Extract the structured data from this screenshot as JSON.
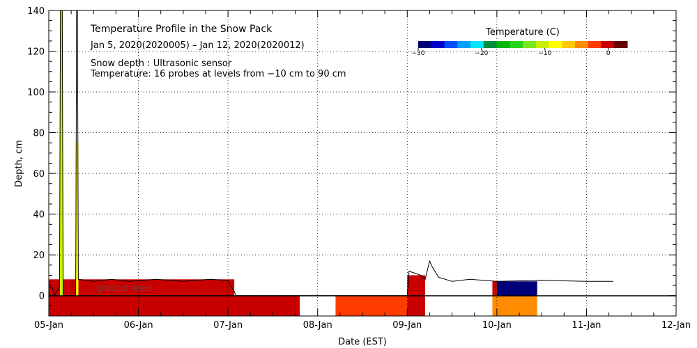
{
  "chart_data": {
    "type": "heatmap",
    "title": "Temperature Profile in the Snow Pack",
    "date_range": "Jan  5, 2020(2020005) – Jan 12, 2020(2020012)",
    "note1": "Snow depth : Ultrasonic sensor",
    "note2": "Temperature: 16 probes at levels from −10 cm to 90 cm",
    "xlabel": "Date (EST)",
    "ylabel": "Depth, cm",
    "ground_label": "ground level",
    "x_ticks": [
      "05-Jan",
      "06-Jan",
      "07-Jan",
      "08-Jan",
      "09-Jan",
      "10-Jan",
      "11-Jan",
      "12-Jan"
    ],
    "xlim_days": [
      0,
      7
    ],
    "ylim": [
      -10,
      140
    ],
    "y_ticks": [
      0,
      20,
      40,
      60,
      80,
      100,
      120,
      140
    ],
    "grid": true,
    "legend": {
      "title": "Temperature (C)",
      "range": [
        -30,
        3
      ],
      "ticks": [
        -30,
        -20,
        -10,
        0
      ],
      "colors": [
        "#00007a",
        "#0000c8",
        "#0050ff",
        "#00a0ff",
        "#00e6ff",
        "#008c3c",
        "#00b400",
        "#2ad21e",
        "#7ae61e",
        "#c8f000",
        "#ffff00",
        "#ffc800",
        "#ff8c00",
        "#ff3c00",
        "#c80000",
        "#640000"
      ]
    },
    "snow_depth_series": {
      "name": "Snow depth",
      "points": [
        [
          0.0,
          4
        ],
        [
          0.04,
          4
        ],
        [
          0.06,
          0
        ],
        [
          0.12,
          4
        ],
        [
          0.13,
          140
        ],
        [
          0.15,
          140
        ],
        [
          0.16,
          0
        ],
        [
          0.3,
          0
        ],
        [
          0.31,
          140
        ],
        [
          0.32,
          140
        ],
        [
          0.33,
          8
        ],
        [
          0.5,
          7
        ],
        [
          0.7,
          8
        ],
        [
          0.9,
          7
        ],
        [
          1.2,
          8
        ],
        [
          1.5,
          7
        ],
        [
          1.8,
          8
        ],
        [
          2.0,
          7.5
        ],
        [
          2.07,
          2
        ],
        [
          2.09,
          0
        ],
        [
          4.0,
          0
        ],
        [
          4.02,
          12
        ],
        [
          4.15,
          10
        ],
        [
          4.2,
          8
        ],
        [
          4.25,
          17
        ],
        [
          4.28,
          14
        ],
        [
          4.35,
          9
        ],
        [
          4.5,
          7
        ],
        [
          4.7,
          8
        ],
        [
          5.0,
          7
        ],
        [
          5.5,
          7.5
        ],
        [
          6.0,
          7
        ],
        [
          6.3,
          7
        ]
      ]
    },
    "temperature_blocks": [
      {
        "day_start": 0.0,
        "day_end": 2.07,
        "depth_from": 0,
        "depth_to": 8,
        "temp_c": 0
      },
      {
        "day_start": 0.0,
        "day_end": 2.8,
        "depth_from": -10,
        "depth_to": 0,
        "temp_c": -1
      },
      {
        "day_start": 3.2,
        "day_end": 4.0,
        "depth_from": -10,
        "depth_to": 0,
        "temp_c": -3
      },
      {
        "day_start": 4.0,
        "day_end": 4.2,
        "depth_from": 0,
        "depth_to": 10,
        "temp_c": 0
      },
      {
        "day_start": 4.0,
        "day_end": 4.2,
        "depth_from": -10,
        "depth_to": 0,
        "temp_c": -1
      },
      {
        "day_start": 4.95,
        "day_end": 5.0,
        "depth_from": 0,
        "depth_to": 7,
        "temp_c": 0
      },
      {
        "day_start": 5.0,
        "day_end": 5.45,
        "depth_from": 0,
        "depth_to": 7,
        "temp_c": -30
      },
      {
        "day_start": 4.95,
        "day_end": 5.45,
        "depth_from": -10,
        "depth_to": 0,
        "temp_c": -5
      }
    ],
    "temperature_spikes": [
      {
        "day": 0.14,
        "depth_to": 140,
        "temp_c": -10
      },
      {
        "day": 0.315,
        "depth_to": 75,
        "temp_c": -8
      }
    ]
  }
}
